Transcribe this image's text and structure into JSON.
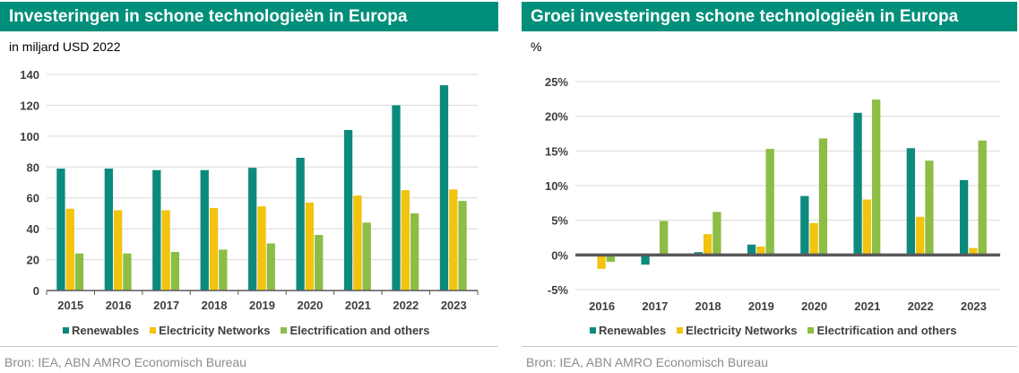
{
  "colors": {
    "header_bg": "#008f7a",
    "renewables": "#0d8a7e",
    "networks": "#f2c30f",
    "electrification": "#8cbd45"
  },
  "left": {
    "title": "Investeringen in schone technologieën in Europa",
    "unit": "in miljard USD 2022",
    "source": "Bron: IEA, ABN AMRO Economisch Bureau"
  },
  "right": {
    "title": "Groei investeringen schone technologieën in Europa",
    "unit": "%",
    "source": "Bron: IEA, ABN AMRO Economisch Bureau"
  },
  "chart_data": [
    {
      "type": "bar",
      "title": "Investeringen in schone technologieën in Europa",
      "ylabel": "in miljard USD 2022",
      "categories": [
        "2015",
        "2016",
        "2017",
        "2018",
        "2019",
        "2020",
        "2021",
        "2022",
        "2023"
      ],
      "series": [
        {
          "name": "Renewables",
          "values": [
            79,
            79,
            78,
            78,
            79.5,
            86,
            104,
            120,
            133
          ]
        },
        {
          "name": "Electricity Networks",
          "values": [
            53,
            52,
            52,
            53.5,
            54.5,
            57,
            61.5,
            65,
            65.5
          ]
        },
        {
          "name": "Electrification and others",
          "values": [
            24,
            24,
            25,
            26.5,
            30.5,
            36,
            44,
            50,
            58
          ]
        }
      ],
      "ylim": [
        0,
        140
      ],
      "yticks": [
        0,
        20,
        40,
        60,
        80,
        100,
        120,
        140
      ],
      "ytick_labels": [
        "0",
        "20",
        "40",
        "60",
        "80",
        "100",
        "120",
        "140"
      ],
      "grid": true,
      "legend": "bottom"
    },
    {
      "type": "bar",
      "title": "Groei investeringen schone technologieën in Europa",
      "ylabel": "%",
      "categories": [
        "2016",
        "2017",
        "2018",
        "2019",
        "2020",
        "2021",
        "2022",
        "2023"
      ],
      "series": [
        {
          "name": "Renewables",
          "values": [
            -0.1,
            -1.4,
            0.4,
            1.5,
            8.5,
            20.5,
            15.4,
            10.8
          ]
        },
        {
          "name": "Electricity Networks",
          "values": [
            -2.0,
            0.0,
            3.0,
            1.2,
            4.6,
            8.0,
            5.5,
            1.0
          ]
        },
        {
          "name": "Electrification and others",
          "values": [
            -1.0,
            4.9,
            6.2,
            15.3,
            16.8,
            22.4,
            13.6,
            16.5
          ]
        }
      ],
      "ylim": [
        -5,
        25
      ],
      "yticks": [
        -5,
        0,
        5,
        10,
        15,
        20,
        25
      ],
      "ytick_labels": [
        "-5%",
        "0%",
        "5%",
        "10%",
        "15%",
        "20%",
        "25%"
      ],
      "grid": true,
      "legend": "bottom"
    }
  ]
}
